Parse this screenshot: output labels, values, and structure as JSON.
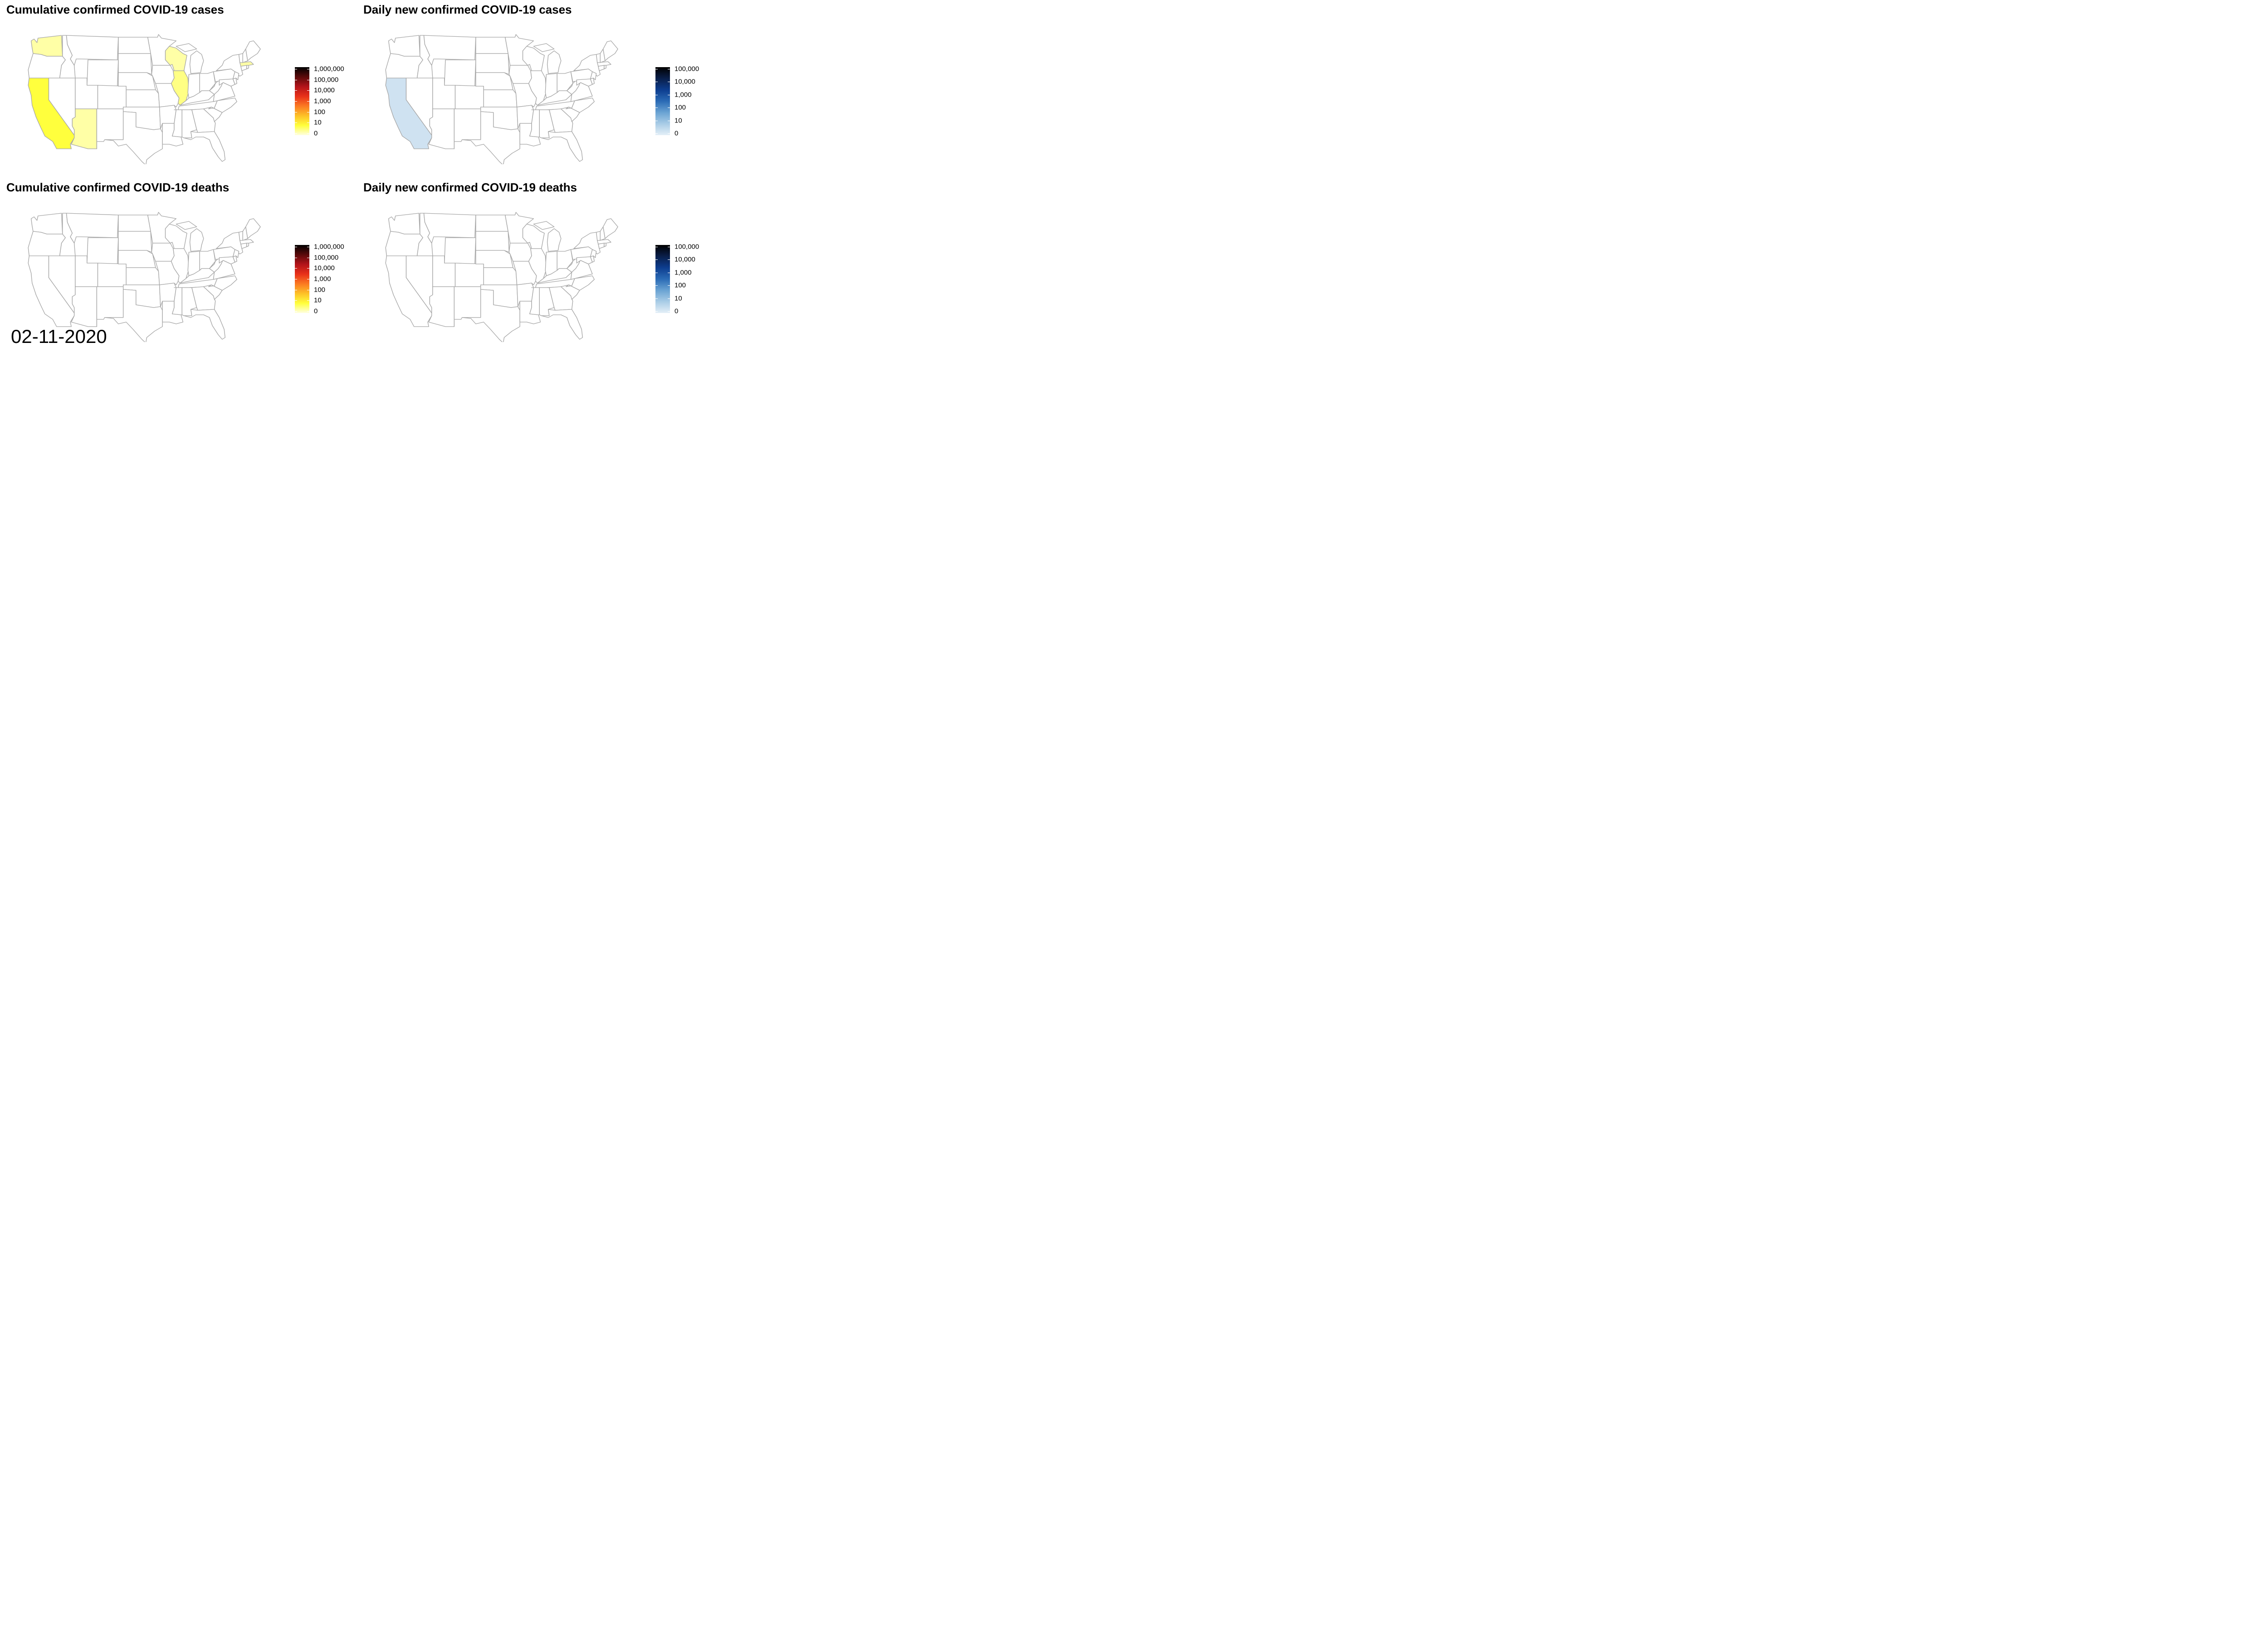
{
  "panels": [
    {
      "id": "cum-cases",
      "title": "Cumulative confirmed COVID-19 cases",
      "scale": "heat",
      "ticks": [
        "1,000,000",
        "100,000",
        "10,000",
        "1,000",
        "100",
        "10",
        "0"
      ],
      "tick_values": [
        1000000,
        100000,
        10000,
        1000,
        100,
        10,
        0
      ],
      "state_values": {
        "CA": 6,
        "WA": 1,
        "WI": 1,
        "IL": 2,
        "AZ": 1,
        "MA": 1
      }
    },
    {
      "id": "daily-cases",
      "title": "Daily new confirmed COVID-19 cases",
      "scale": "blues",
      "ticks": [
        "100,000",
        "10,000",
        "1,000",
        "100",
        "10",
        "0"
      ],
      "tick_values": [
        100000,
        10000,
        1000,
        100,
        10,
        0
      ],
      "state_values": {
        "CA": 1
      }
    },
    {
      "id": "cum-deaths",
      "title": "Cumulative confirmed COVID-19 deaths",
      "scale": "heat",
      "ticks": [
        "1,000,000",
        "100,000",
        "10,000",
        "1,000",
        "100",
        "10",
        "0"
      ],
      "tick_values": [
        1000000,
        100000,
        10000,
        1000,
        100,
        10,
        0
      ],
      "state_values": {}
    },
    {
      "id": "daily-deaths",
      "title": "Daily new confirmed COVID-19 deaths",
      "scale": "blues",
      "ticks": [
        "100,000",
        "10,000",
        "1,000",
        "100",
        "10",
        "0"
      ],
      "tick_values": [
        100000,
        10000,
        1000,
        100,
        10,
        0
      ],
      "state_values": {}
    }
  ],
  "colors": {
    "border": "#a8a8a8",
    "empty_fill": "#ffffff",
    "heat_stops": [
      "#000000",
      "#5a0a0a",
      "#b3141a",
      "#e8311a",
      "#fb7a22",
      "#fdc127",
      "#ffff3b",
      "#ffffe0"
    ],
    "blues_stops": [
      "#000000",
      "#0a1f4a",
      "#0d3d8f",
      "#2b6bb5",
      "#6aa3d3",
      "#a9cce6",
      "#e4eff7"
    ]
  },
  "date": "02-11-2020"
}
